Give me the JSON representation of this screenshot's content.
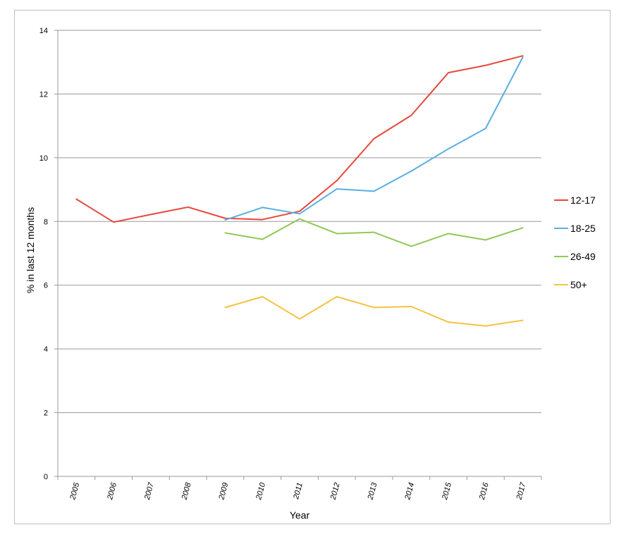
{
  "chart_data": {
    "type": "line",
    "xlabel": "Year",
    "ylabel": "% in last 12 months",
    "ylim": [
      0,
      14
    ],
    "yticks": [
      0,
      2,
      4,
      6,
      8,
      10,
      12,
      14
    ],
    "x": [
      "2005",
      "2006",
      "2007",
      "2008",
      "2009",
      "2010",
      "2011",
      "2012",
      "2013",
      "2014",
      "2015",
      "2016",
      "2017"
    ],
    "grid": true,
    "legend_position": "right",
    "series": [
      {
        "name": "12-17",
        "color": "#e8473b",
        "values": [
          8.7,
          7.98,
          8.22,
          8.45,
          8.1,
          8.06,
          8.32,
          9.28,
          10.6,
          11.33,
          12.67,
          12.9,
          13.2
        ]
      },
      {
        "name": "18-25",
        "color": "#5aafe0",
        "values": [
          null,
          null,
          null,
          null,
          8.05,
          8.44,
          8.24,
          9.02,
          8.95,
          9.58,
          10.28,
          10.92,
          13.16
        ]
      },
      {
        "name": "26-49",
        "color": "#92c756",
        "values": [
          null,
          null,
          null,
          null,
          7.64,
          7.44,
          8.08,
          7.62,
          7.66,
          7.22,
          7.62,
          7.42,
          7.8
        ]
      },
      {
        "name": "50+",
        "color": "#f5c244",
        "values": [
          null,
          null,
          null,
          null,
          5.3,
          5.64,
          4.94,
          5.64,
          5.3,
          5.33,
          4.84,
          4.72,
          4.9
        ]
      }
    ]
  }
}
